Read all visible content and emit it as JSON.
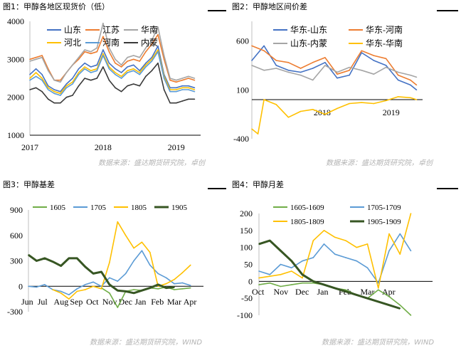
{
  "panels": [
    {
      "title": "图1：甲醇各地区现货价（低）",
      "source": "数据来源：盛达期货研究院，卓创"
    },
    {
      "title": "图2：甲醇地区间价差",
      "source": "数据来源：盛达期货研究院，卓创"
    },
    {
      "title": "图3：甲醇基差",
      "source": "数据来源：盛达期货研究院，WIND"
    },
    {
      "title": "图4：甲醇月差",
      "source": "数据来源：盛达期货研究院，WIND"
    }
  ],
  "chart_data": [
    {
      "type": "line",
      "title": "图1：甲醇各地区现货价（低）",
      "xlabel": "",
      "ylabel": "",
      "x_ticks": [
        "2017",
        "2018",
        "2019"
      ],
      "ylim": [
        1000,
        4000
      ],
      "y_ticks": [
        1000,
        2000,
        3000,
        4000
      ],
      "x_range": [
        "2017-01",
        "2019-04"
      ],
      "legend_position": "top",
      "series": [
        {
          "name": "山东",
          "color": "#4472c4",
          "x": [
            "2017-01",
            "2017-02",
            "2017-03",
            "2017-04",
            "2017-05",
            "2017-06",
            "2017-07",
            "2017-08",
            "2017-09",
            "2017-10",
            "2017-11",
            "2017-12",
            "2018-01",
            "2018-02",
            "2018-03",
            "2018-04",
            "2018-05",
            "2018-06",
            "2018-07",
            "2018-08",
            "2018-09",
            "2018-10",
            "2018-11",
            "2018-12",
            "2019-01",
            "2019-02",
            "2019-03",
            "2019-04"
          ],
          "values": [
            2600,
            2750,
            2600,
            2300,
            2200,
            2150,
            2350,
            2500,
            2750,
            2900,
            2800,
            2850,
            3250,
            2900,
            2750,
            2650,
            2800,
            2850,
            2700,
            2900,
            3050,
            3350,
            2600,
            2250,
            2250,
            2300,
            2300,
            2250
          ]
        },
        {
          "name": "江苏",
          "color": "#ed7d31",
          "x": [
            "2017-01",
            "2017-02",
            "2017-03",
            "2017-04",
            "2017-05",
            "2017-06",
            "2017-07",
            "2017-08",
            "2017-09",
            "2017-10",
            "2017-11",
            "2017-12",
            "2018-01",
            "2018-02",
            "2018-03",
            "2018-04",
            "2018-05",
            "2018-06",
            "2018-07",
            "2018-08",
            "2018-09",
            "2018-10",
            "2018-11",
            "2018-12",
            "2019-01",
            "2019-02",
            "2019-03",
            "2019-04"
          ],
          "values": [
            3000,
            3050,
            3100,
            2750,
            2450,
            2450,
            2650,
            2850,
            3000,
            3200,
            3150,
            3200,
            3600,
            3200,
            2900,
            2800,
            2950,
            3000,
            2950,
            3200,
            3400,
            3650,
            3000,
            2450,
            2400,
            2450,
            2500,
            2450
          ]
        },
        {
          "name": "华南",
          "color": "#a5a5a5",
          "x": [
            "2017-01",
            "2017-02",
            "2017-03",
            "2017-04",
            "2017-05",
            "2017-06",
            "2017-07",
            "2017-08",
            "2017-09",
            "2017-10",
            "2017-11",
            "2017-12",
            "2018-01",
            "2018-02",
            "2018-03",
            "2018-04",
            "2018-05",
            "2018-06",
            "2018-07",
            "2018-08",
            "2018-09",
            "2018-10",
            "2018-11",
            "2018-12",
            "2019-01",
            "2019-02",
            "2019-03",
            "2019-04"
          ],
          "values": [
            2950,
            3000,
            3050,
            2700,
            2450,
            2400,
            2650,
            2850,
            3050,
            3250,
            3200,
            3300,
            3950,
            3300,
            3000,
            2850,
            3050,
            3100,
            3050,
            3300,
            3500,
            3850,
            3100,
            2500,
            2450,
            2500,
            2550,
            2500
          ]
        },
        {
          "name": "河北",
          "color": "#ffc000",
          "x": [
            "2017-01",
            "2017-02",
            "2017-03",
            "2017-04",
            "2017-05",
            "2017-06",
            "2017-07",
            "2017-08",
            "2017-09",
            "2017-10",
            "2017-11",
            "2017-12",
            "2018-01",
            "2018-02",
            "2018-03",
            "2018-04",
            "2018-05",
            "2018-06",
            "2018-07",
            "2018-08",
            "2018-09",
            "2018-10",
            "2018-11",
            "2018-12",
            "2019-01",
            "2019-02",
            "2019-03",
            "2019-04"
          ],
          "values": [
            2500,
            2650,
            2500,
            2250,
            2150,
            2100,
            2300,
            2400,
            2650,
            2800,
            2700,
            2750,
            3150,
            2800,
            2650,
            2550,
            2700,
            2750,
            2650,
            2850,
            3000,
            3250,
            2550,
            2200,
            2200,
            2250,
            2250,
            2200
          ]
        },
        {
          "name": "河南",
          "color": "#5b9bd5",
          "x": [
            "2017-01",
            "2017-02",
            "2017-03",
            "2017-04",
            "2017-05",
            "2017-06",
            "2017-07",
            "2017-08",
            "2017-09",
            "2017-10",
            "2017-11",
            "2017-12",
            "2018-01",
            "2018-02",
            "2018-03",
            "2018-04",
            "2018-05",
            "2018-06",
            "2018-07",
            "2018-08",
            "2018-09",
            "2018-10",
            "2018-11",
            "2018-12",
            "2019-01",
            "2019-02",
            "2019-03",
            "2019-04"
          ],
          "values": [
            2450,
            2550,
            2450,
            2200,
            2100,
            2050,
            2250,
            2350,
            2600,
            2750,
            2650,
            2700,
            3100,
            2750,
            2600,
            2500,
            2650,
            2700,
            2600,
            2800,
            2950,
            3200,
            2500,
            2150,
            2150,
            2200,
            2200,
            2150
          ]
        },
        {
          "name": "内蒙",
          "color": "#3a3a3a",
          "x": [
            "2017-01",
            "2017-02",
            "2017-03",
            "2017-04",
            "2017-05",
            "2017-06",
            "2017-07",
            "2017-08",
            "2017-09",
            "2017-10",
            "2017-11",
            "2017-12",
            "2018-01",
            "2018-02",
            "2018-03",
            "2018-04",
            "2018-05",
            "2018-06",
            "2018-07",
            "2018-08",
            "2018-09",
            "2018-10",
            "2018-11",
            "2018-12",
            "2019-01",
            "2019-02",
            "2019-03",
            "2019-04"
          ],
          "values": [
            2200,
            2250,
            2150,
            1950,
            1850,
            1850,
            2000,
            2050,
            2300,
            2500,
            2450,
            2500,
            2800,
            2450,
            2250,
            2150,
            2300,
            2350,
            2300,
            2550,
            2700,
            2900,
            2200,
            1850,
            1850,
            1900,
            1950,
            1950
          ]
        }
      ]
    },
    {
      "type": "line",
      "title": "图2：甲醇地区间价差",
      "xlabel": "",
      "ylabel": "",
      "x_ticks": [
        "2018",
        "2019"
      ],
      "ylim": [
        -400,
        800
      ],
      "y_ticks": [
        -400,
        100,
        600
      ],
      "x_range": [
        "2017-01",
        "2019-04"
      ],
      "legend_position": "top",
      "series": [
        {
          "name": "华东-山东",
          "color": "#4472c4",
          "x": [
            "2017-01",
            "2017-03",
            "2017-05",
            "2017-07",
            "2017-09",
            "2017-11",
            "2018-01",
            "2018-03",
            "2018-05",
            "2018-07",
            "2018-09",
            "2018-11",
            "2019-01",
            "2019-03",
            "2019-04"
          ],
          "values": [
            400,
            550,
            350,
            300,
            280,
            320,
            380,
            220,
            250,
            480,
            400,
            350,
            200,
            150,
            100
          ]
        },
        {
          "name": "华东-河南",
          "color": "#ed7d31",
          "x": [
            "2017-01",
            "2017-03",
            "2017-05",
            "2017-07",
            "2017-09",
            "2017-11",
            "2018-01",
            "2018-03",
            "2018-05",
            "2018-07",
            "2018-09",
            "2018-11",
            "2019-01",
            "2019-03",
            "2019-04"
          ],
          "values": [
            550,
            500,
            400,
            380,
            320,
            380,
            430,
            260,
            300,
            500,
            450,
            420,
            250,
            200,
            150
          ]
        },
        {
          "name": "山东-内蒙",
          "color": "#a5a5a5",
          "x": [
            "2017-01",
            "2017-03",
            "2017-05",
            "2017-07",
            "2017-09",
            "2017-11",
            "2018-01",
            "2018-03",
            "2018-05",
            "2018-07",
            "2018-09",
            "2018-11",
            "2019-01",
            "2019-03",
            "2019-04"
          ],
          "values": [
            350,
            300,
            320,
            280,
            250,
            200,
            350,
            280,
            330,
            300,
            260,
            330,
            280,
            250,
            230
          ]
        },
        {
          "name": "华东-华南",
          "color": "#ffc000",
          "x": [
            "2017-01",
            "2017-02",
            "2017-03",
            "2017-05",
            "2017-07",
            "2017-09",
            "2017-11",
            "2018-01",
            "2018-03",
            "2018-05",
            "2018-07",
            "2018-09",
            "2018-11",
            "2019-01",
            "2019-03",
            "2019-04"
          ],
          "values": [
            -300,
            -350,
            0,
            -50,
            -180,
            -120,
            -100,
            -150,
            -90,
            -40,
            -30,
            -40,
            -10,
            30,
            20,
            0
          ]
        }
      ]
    },
    {
      "type": "line",
      "title": "图3：甲醇基差",
      "xlabel": "",
      "ylabel": "",
      "x_ticks": [
        "Jun",
        "Jul",
        "Aug",
        "Sep",
        "Oct",
        "Nov",
        "Dec",
        "Jan",
        "Feb",
        "Mar",
        "Apr"
      ],
      "ylim": [
        -300,
        900
      ],
      "y_ticks": [
        -300,
        0,
        300,
        600,
        900
      ],
      "legend_position": "top",
      "series": [
        {
          "name": "1605",
          "color": "#70ad47",
          "x": [
            4.5,
            5,
            5.5,
            6,
            6.5,
            7,
            7.5,
            8,
            8.5,
            9,
            9.5,
            10
          ],
          "values": [
            -20,
            -80,
            -250,
            -60,
            -40,
            -50,
            -20,
            -30,
            -10,
            -40,
            -30,
            -20
          ]
        },
        {
          "name": "1705",
          "color": "#5b9bd5",
          "x": [
            0,
            0.5,
            1,
            1.5,
            2,
            2.5,
            3,
            3.5,
            4,
            4.5,
            5,
            5.5,
            6,
            6.5,
            7,
            7.5,
            8,
            8.5,
            9,
            9.5,
            10
          ],
          "values": [
            0,
            -10,
            20,
            -40,
            -60,
            -100,
            -30,
            20,
            50,
            0,
            100,
            60,
            150,
            300,
            420,
            250,
            150,
            100,
            30,
            40,
            10
          ]
        },
        {
          "name": "1805",
          "color": "#ffc000",
          "x": [
            1.5,
            2,
            2.5,
            3,
            3.5,
            4,
            4.5,
            5,
            5.5,
            6,
            6.5,
            7,
            7.5,
            8,
            8.5,
            9,
            9.5,
            10
          ],
          "values": [
            -40,
            -80,
            -150,
            -60,
            -40,
            0,
            -30,
            280,
            760,
            600,
            450,
            520,
            400,
            0,
            30,
            80,
            160,
            250
          ]
        },
        {
          "name": "1905",
          "color": "#375623",
          "x": [
            0,
            0.5,
            1,
            1.5,
            2,
            2.5,
            3,
            3.5,
            4,
            4.5,
            5,
            5.5,
            6,
            6.5,
            7,
            7.5,
            8,
            8.5,
            9
          ],
          "values": [
            370,
            300,
            330,
            290,
            240,
            330,
            330,
            230,
            150,
            170,
            20,
            -50,
            -60,
            -80,
            -50,
            -20,
            20,
            -20,
            -10
          ]
        }
      ]
    },
    {
      "type": "line",
      "title": "图4：甲醇月差",
      "xlabel": "",
      "ylabel": "",
      "x_ticks": [
        "Oct",
        "Nov",
        "Dec",
        "Jan",
        "Feb",
        "Mar",
        "Apr"
      ],
      "ylim": [
        -100,
        200
      ],
      "y_ticks": [
        -100,
        -50,
        0,
        50,
        100,
        150,
        200
      ],
      "legend_position": "top",
      "series": [
        {
          "name": "1605-1609",
          "color": "#70ad47",
          "x": [
            0,
            0.5,
            1,
            1.5,
            2,
            2.5,
            3,
            3.5,
            4,
            4.5,
            5,
            5.5,
            6,
            6.5,
            7
          ],
          "values": [
            -10,
            -5,
            -15,
            -10,
            -5,
            -5,
            -10,
            -20,
            -25,
            -40,
            -50,
            -25,
            -45,
            -70,
            -100
          ]
        },
        {
          "name": "1705-1709",
          "color": "#5b9bd5",
          "x": [
            0,
            0.5,
            1,
            1.5,
            2,
            2.5,
            3,
            3.5,
            4,
            4.5,
            5,
            5.5,
            6,
            6.5,
            7
          ],
          "values": [
            30,
            20,
            50,
            40,
            60,
            70,
            110,
            80,
            70,
            60,
            40,
            -5,
            90,
            140,
            90
          ]
        },
        {
          "name": "1805-1809",
          "color": "#ffc000",
          "x": [
            0,
            0.5,
            1,
            1.5,
            2,
            2.5,
            3,
            3.5,
            4,
            4.5,
            5,
            5.5,
            6,
            6.5,
            7
          ],
          "values": [
            10,
            15,
            20,
            30,
            10,
            120,
            150,
            130,
            120,
            100,
            110,
            -20,
            140,
            80,
            200
          ]
        },
        {
          "name": "1905-1909",
          "color": "#375623",
          "x": [
            0,
            0.5,
            1,
            1.5,
            2,
            2.5,
            3,
            3.5,
            4,
            4.5,
            5,
            5.5,
            6,
            6.5
          ],
          "values": [
            110,
            120,
            90,
            60,
            20,
            0,
            -10,
            -20,
            -30,
            -40,
            -50,
            -60,
            -70,
            -80
          ]
        }
      ]
    }
  ]
}
